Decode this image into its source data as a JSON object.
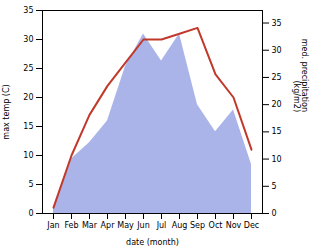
{
  "chart_data": {
    "type": "line",
    "xlabel": "date (month)",
    "ylabel": "max temp (C)",
    "y2label": "med. precipitation\n(kg/m2)",
    "categories": [
      "Jan",
      "Feb",
      "Mar",
      "Apr",
      "May",
      "Jun",
      "Jul",
      "Aug",
      "Sep",
      "Oct",
      "Nov",
      "Dec"
    ],
    "series": [
      {
        "type": "area",
        "axis": "y2",
        "color": "#aab4e8",
        "values": [
          1,
          10,
          13,
          17,
          27,
          33,
          28,
          33,
          20,
          15,
          19,
          9
        ]
      },
      {
        "type": "line",
        "color": "#c0392b",
        "values": [
          1,
          10,
          17,
          22,
          26,
          30,
          30,
          31,
          32,
          24,
          20,
          11
        ]
      }
    ],
    "ylim": [
      0,
      35
    ],
    "yticks": [
      0,
      5,
      10,
      15,
      20,
      25,
      30,
      35
    ],
    "y2lim": [
      0,
      37.3
    ],
    "y2ticks": [
      0,
      5,
      10,
      15,
      20,
      25,
      30,
      35
    ],
    "grid": false
  }
}
